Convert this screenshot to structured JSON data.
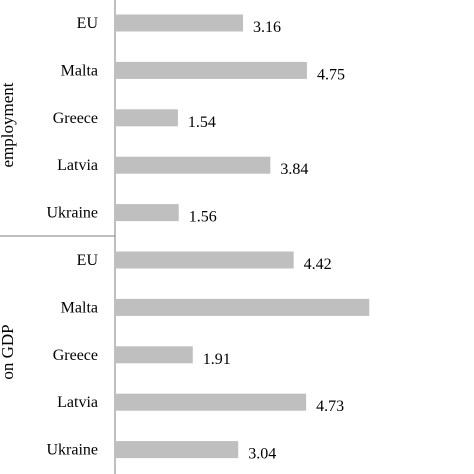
{
  "chart_data": {
    "type": "bar",
    "orientation": "horizontal",
    "grid": false,
    "legend": "none",
    "xlim": [
      0,
      7
    ],
    "bar_color": "#bfbfbf",
    "groups": [
      {
        "label": "employment",
        "categories": [
          "EU",
          "Malta",
          "Greece",
          "Latvia",
          "Ukraine"
        ],
        "values": [
          3.16,
          4.75,
          1.54,
          3.84,
          1.56
        ],
        "value_labels": [
          "3.16",
          "4.75",
          "1.54",
          "3.84",
          "1.56"
        ]
      },
      {
        "label": "on GDP",
        "categories": [
          "EU",
          "Malta",
          "Greece",
          "Latvia",
          "Ukraine"
        ],
        "values": [
          4.42,
          6.3,
          1.91,
          4.73,
          3.04
        ],
        "value_labels": [
          "4.42",
          "",
          "1.91",
          "4.73",
          "3.04"
        ]
      }
    ]
  }
}
